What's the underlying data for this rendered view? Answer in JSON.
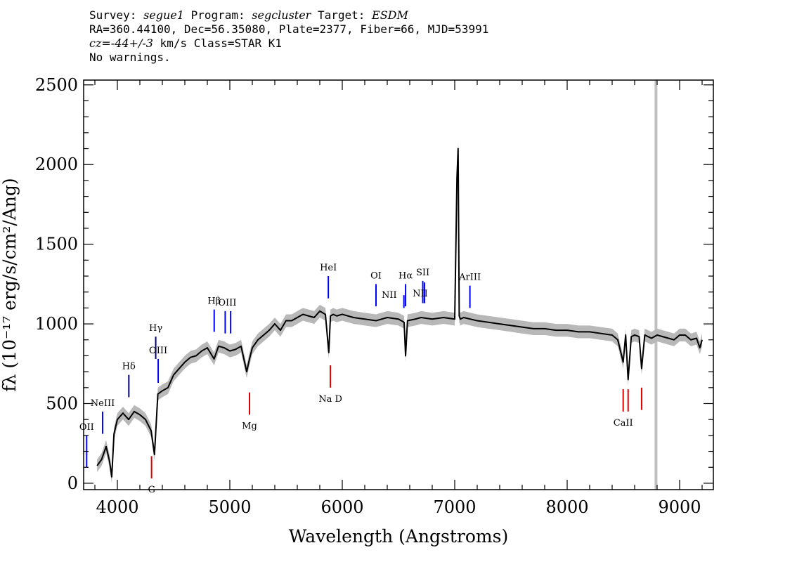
{
  "header": {
    "line1": {
      "survey_label": "Survey: ",
      "survey": "segue1",
      "program_label": " Program: ",
      "program": "segcluster",
      "target_label": " Target: ",
      "target": "ESDM"
    },
    "line2": "RA=360.44100, Dec=56.35080, Plate=2377, Fiber=66, MJD=53991",
    "line3": {
      "cz_label": "cz=",
      "cz_value": "-44+/-3",
      "rest": " km/s Class=STAR K1"
    },
    "line4": "No warnings."
  },
  "chart_data": {
    "type": "line",
    "title": "",
    "xlabel": "Wavelength (Angstroms)",
    "ylabel": "fλ (10⁻¹⁷ erg/s/cm²/Ang)",
    "xlim": [
      3700,
      9300
    ],
    "ylim": [
      -40,
      2530
    ],
    "xticks": [
      4000,
      5000,
      6000,
      7000,
      8000,
      9000
    ],
    "xtick_labels": [
      "4000",
      "5000",
      "6000",
      "7000",
      "8000",
      "9000"
    ],
    "yticks": [
      0,
      500,
      1000,
      1500,
      2000,
      2500
    ],
    "ytick_labels": [
      "0",
      "500",
      "1000",
      "1500",
      "2000",
      "2500"
    ],
    "vertical_marker": {
      "x": 8790,
      "color": "#c0c0c0"
    },
    "series": [
      {
        "name": "flux",
        "color": "#000000",
        "x": [
          3820,
          3860,
          3900,
          3930,
          3950,
          3970,
          4000,
          4050,
          4100,
          4150,
          4200,
          4250,
          4300,
          4330,
          4360,
          4400,
          4450,
          4500,
          4550,
          4600,
          4650,
          4700,
          4750,
          4800,
          4860,
          4900,
          4950,
          5000,
          5050,
          5100,
          5150,
          5175,
          5200,
          5250,
          5300,
          5350,
          5400,
          5450,
          5500,
          5550,
          5600,
          5650,
          5700,
          5750,
          5800,
          5850,
          5880,
          5895,
          5920,
          5950,
          6000,
          6100,
          6200,
          6300,
          6400,
          6500,
          6550,
          6563,
          6580,
          6650,
          6700,
          6800,
          6900,
          7000,
          7020,
          7030,
          7040,
          7050,
          7080,
          7200,
          7300,
          7400,
          7500,
          7600,
          7700,
          7800,
          7900,
          8000,
          8100,
          8200,
          8300,
          8400,
          8450,
          8498,
          8520,
          8542,
          8570,
          8600,
          8640,
          8662,
          8690,
          8750,
          8800,
          8850,
          8900,
          8950,
          9000,
          9050,
          9100,
          9150,
          9180,
          9200
        ],
        "values": [
          110,
          150,
          230,
          140,
          40,
          310,
          400,
          440,
          400,
          450,
          430,
          400,
          330,
          180,
          560,
          580,
          600,
          680,
          720,
          760,
          790,
          800,
          830,
          850,
          780,
          860,
          850,
          830,
          840,
          860,
          700,
          780,
          850,
          900,
          930,
          960,
          1000,
          960,
          1020,
          1020,
          1040,
          1060,
          1050,
          1040,
          1080,
          1060,
          820,
          1050,
          1060,
          1050,
          1060,
          1040,
          1030,
          1020,
          1040,
          1030,
          1010,
          800,
          1020,
          1030,
          1040,
          1030,
          1040,
          1030,
          1920,
          2100,
          1050,
          1030,
          1040,
          1020,
          1010,
          1000,
          990,
          980,
          970,
          970,
          960,
          960,
          950,
          950,
          940,
          930,
          900,
          760,
          930,
          650,
          920,
          930,
          920,
          720,
          930,
          910,
          930,
          920,
          910,
          900,
          930,
          930,
          900,
          910,
          850,
          900
        ]
      }
    ],
    "spectral_lines": [
      {
        "label": "OII",
        "x": 3727,
        "y_top": 300,
        "y_bottom": 100,
        "color": "#0000ff",
        "label_position": "above"
      },
      {
        "label": "NeIII",
        "x": 3869,
        "y_top": 450,
        "y_bottom": 310,
        "color": "#0000ff",
        "label_position": "above"
      },
      {
        "label": "Hδ",
        "x": 4102,
        "y_top": 680,
        "y_bottom": 540,
        "color": "#000080",
        "label_position": "above"
      },
      {
        "label": "Hγ",
        "x": 4341,
        "y_top": 920,
        "y_bottom": 780,
        "color": "#000080",
        "label_position": "above"
      },
      {
        "label": "OIII",
        "x": 4363,
        "y_top": 780,
        "y_bottom": 630,
        "color": "#0000ff",
        "label_position": "above"
      },
      {
        "label": "Hβ",
        "x": 4861,
        "y_top": 1090,
        "y_bottom": 950,
        "color": "#0000ff",
        "label_position": "above"
      },
      {
        "label": "OIII",
        "x": 4959,
        "y_top": 1080,
        "y_bottom": 940,
        "color": "#0000ff",
        "label_position": "above-right"
      },
      {
        "label": "",
        "x": 5007,
        "y_top": 1080,
        "y_bottom": 940,
        "color": "#0000ff",
        "label_position": "none"
      },
      {
        "label": "HeI",
        "x": 5876,
        "y_top": 1300,
        "y_bottom": 1160,
        "color": "#0000ff",
        "label_position": "above"
      },
      {
        "label": "OI",
        "x": 6300,
        "y_top": 1250,
        "y_bottom": 1110,
        "color": "#0000ff",
        "label_position": "above"
      },
      {
        "label": "NII",
        "x": 6548,
        "y_top": 1180,
        "y_bottom": 1100,
        "color": "#0000ff",
        "label_position": "left"
      },
      {
        "label": "Hα",
        "x": 6563,
        "y_top": 1250,
        "y_bottom": 1110,
        "color": "#0000ff",
        "label_position": "above"
      },
      {
        "label": "SII",
        "x": 6716,
        "y_top": 1270,
        "y_bottom": 1130,
        "color": "#0000ff",
        "label_position": "above"
      },
      {
        "label": "NII",
        "x": 6731,
        "y_top": 1260,
        "y_bottom": 1130,
        "color": "#0000ff",
        "label_position": "mid"
      },
      {
        "label": "ArIII",
        "x": 7135,
        "y_top": 1240,
        "y_bottom": 1100,
        "color": "#0000ff",
        "label_position": "above"
      },
      {
        "label": "G",
        "x": 4304,
        "y_top": 170,
        "y_bottom": 30,
        "color": "#e00000",
        "label_position": "below"
      },
      {
        "label": "Mg",
        "x": 5175,
        "y_top": 570,
        "y_bottom": 430,
        "color": "#e00000",
        "label_position": "below"
      },
      {
        "label": "Na D",
        "x": 5894,
        "y_top": 740,
        "y_bottom": 600,
        "color": "#e00000",
        "label_position": "below"
      },
      {
        "label": "CaII",
        "x": 8498,
        "y_top": 590,
        "y_bottom": 450,
        "color": "#e00000",
        "label_position": "below"
      },
      {
        "label": "",
        "x": 8542,
        "y_top": 590,
        "y_bottom": 450,
        "color": "#e00000",
        "label_position": "none"
      },
      {
        "label": "",
        "x": 8662,
        "y_top": 600,
        "y_bottom": 460,
        "color": "#e00000",
        "label_position": "none"
      }
    ]
  }
}
